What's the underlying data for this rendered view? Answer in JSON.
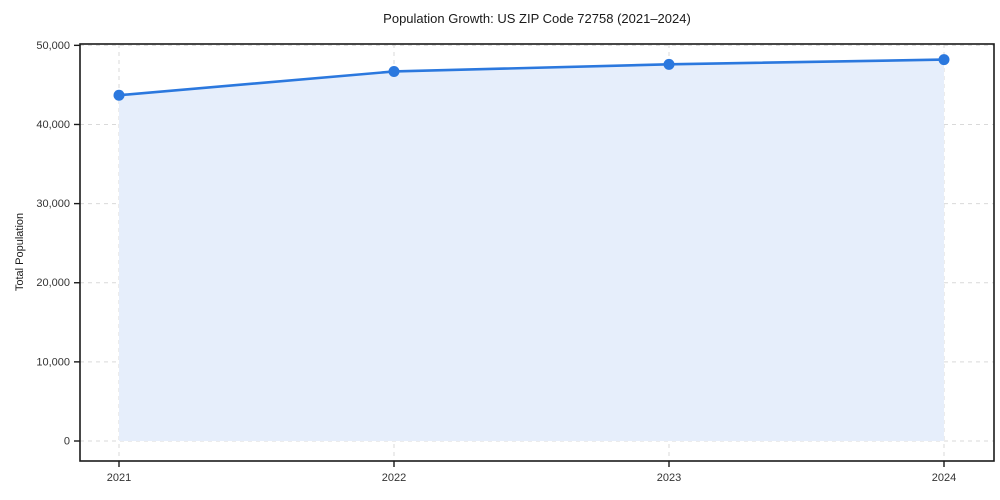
{
  "chart_data": {
    "type": "area",
    "title": "Population Growth: US ZIP Code 72758 (2021–2024)",
    "xlabel": "",
    "ylabel": "Total Population",
    "categories": [
      "2021",
      "2022",
      "2023",
      "2024"
    ],
    "series": [
      {
        "name": "Total Population",
        "values": [
          43700,
          46700,
          47600,
          48200
        ]
      }
    ],
    "yticks": [
      0,
      10000,
      20000,
      30000,
      40000,
      50000
    ],
    "ytick_labels": [
      "0",
      "10,000",
      "20,000",
      "30,000",
      "40,000",
      "50,000"
    ],
    "xtick_labels": [
      "2021",
      "2022",
      "2023",
      "2024"
    ],
    "ylim": [
      0,
      50000
    ],
    "grid": "dashed-both-axes",
    "legend": "none",
    "colors": {
      "line": "#2b78de",
      "marker": "#2b78de",
      "area_fill": "#e6eefb",
      "grid": "#d9d9d9",
      "spine": "#1a1a1a",
      "tick_text": "#333333",
      "background": "#ffffff"
    }
  }
}
